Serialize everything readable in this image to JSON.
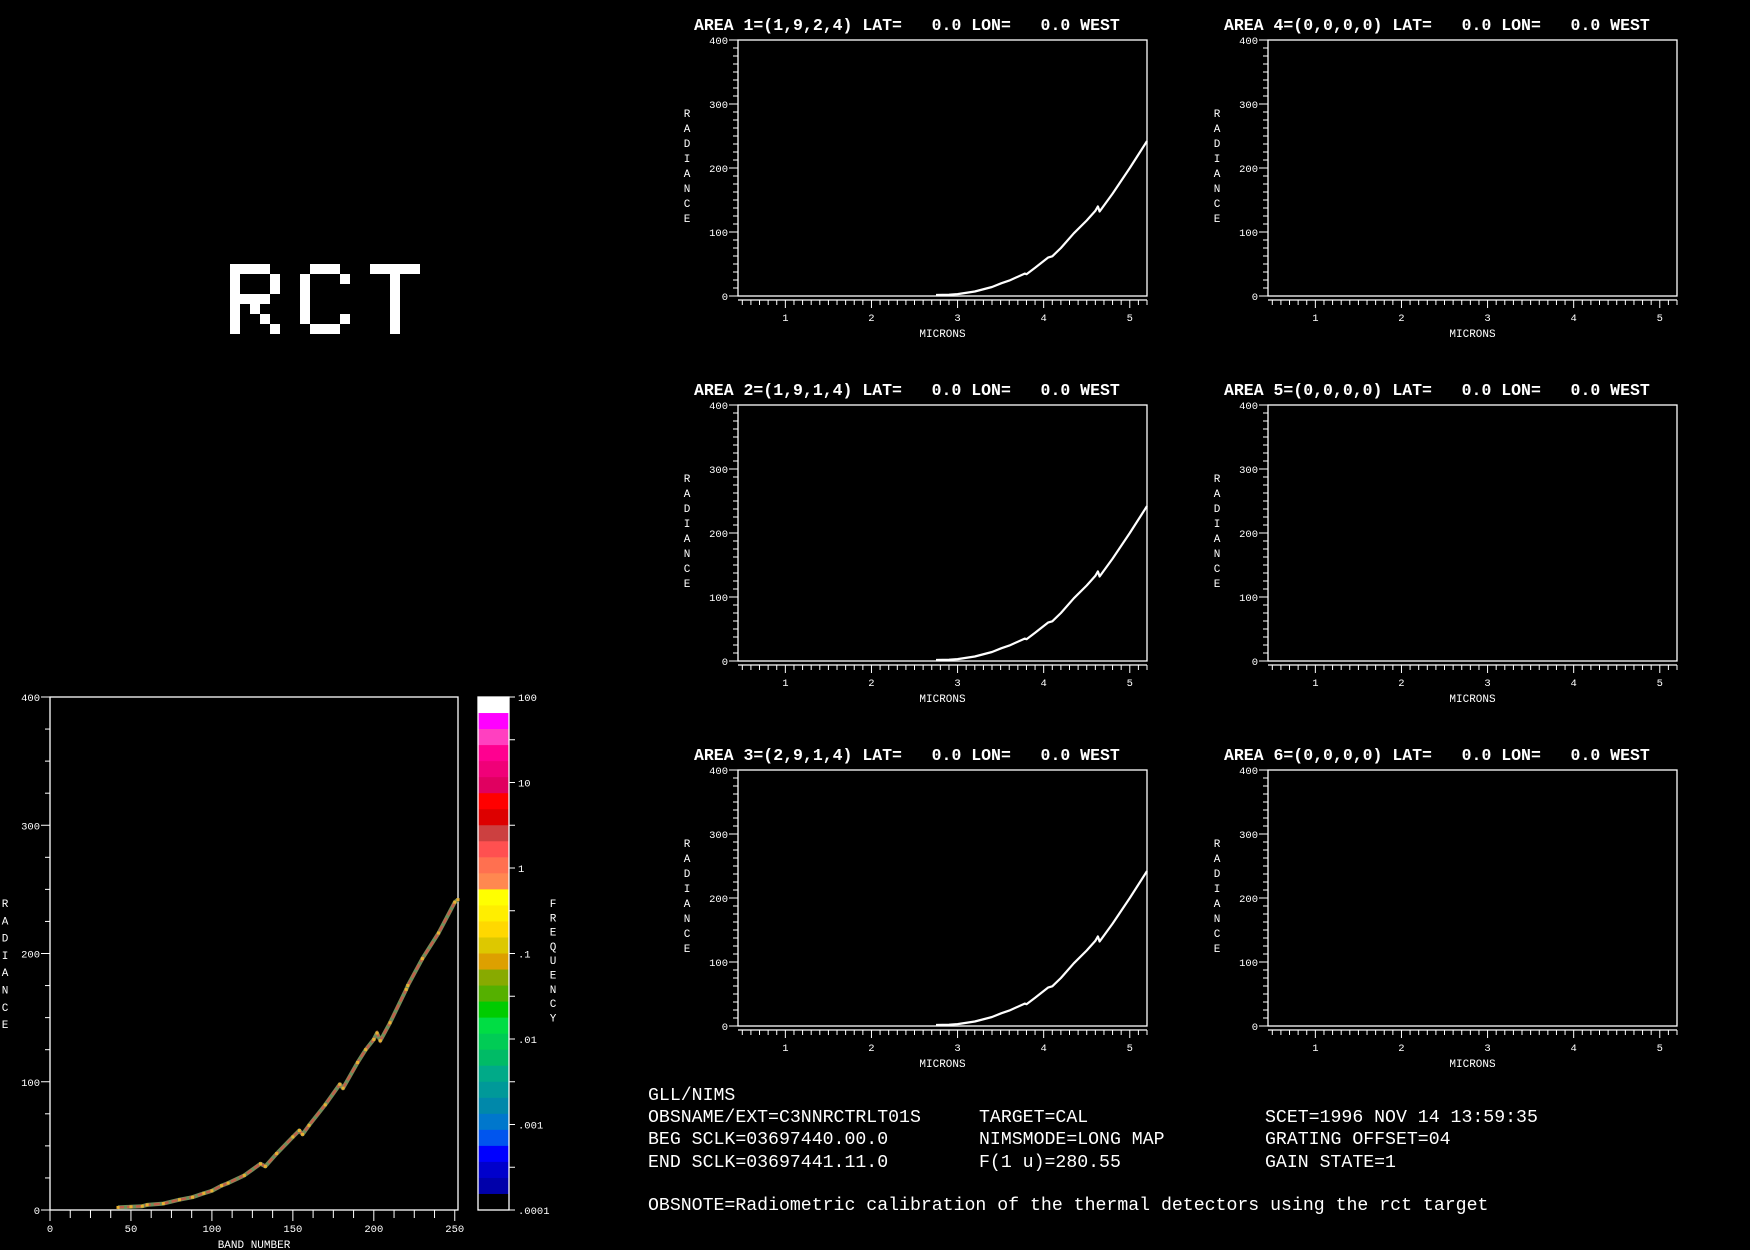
{
  "logo_text": "RCT",
  "footer": {
    "instrument": "GLL/NIMS",
    "obsname": "OBSNAME/EXT=C3NNRCTRLT01S",
    "beg_sclk": "BEG SCLK=03697440.00.0",
    "end_sclk": "END SCLK=03697441.11.0",
    "target": "TARGET=CAL",
    "nimsmode": "NIMSMODE=LONG MAP",
    "f1u": "F(1 u)=280.55",
    "scet": "SCET=1996 NOV 14 13:59:35",
    "grating_offset": "GRATING OFFSET=04",
    "gain_state": "GAIN STATE=1",
    "obsnote": "OBSNOTE=Radiometric calibration of the thermal detectors using the rct target"
  },
  "chart_data": [
    {
      "type": "line",
      "xlabel": "BAND NUMBER",
      "ylabel": "RADIANCE",
      "xlim": [
        0,
        252
      ],
      "ylim": [
        0,
        400
      ],
      "xticks": [
        "0",
        "50",
        "100",
        "150",
        "200",
        "250"
      ],
      "yticks": [
        "0",
        "100",
        "200",
        "300",
        "400"
      ],
      "grid": false,
      "series": [
        {
          "points": [
            [
              42,
              2
            ],
            [
              50,
              2.5
            ],
            [
              57,
              3
            ],
            [
              60,
              4
            ],
            [
              70,
              5
            ],
            [
              80,
              8
            ],
            [
              88,
              10
            ],
            [
              95,
              13
            ],
            [
              100,
              15
            ],
            [
              106,
              19
            ],
            [
              110,
              21
            ],
            [
              120,
              27
            ],
            [
              130,
              36
            ],
            [
              133,
              34
            ],
            [
              140,
              44
            ],
            [
              150,
              57
            ],
            [
              154,
              62
            ],
            [
              156,
              59
            ],
            [
              160,
              66
            ],
            [
              170,
              82
            ],
            [
              179,
              98
            ],
            [
              181,
              95
            ],
            [
              190,
              115
            ],
            [
              195,
              125
            ],
            [
              200,
              133
            ],
            [
              202,
              138
            ],
            [
              204,
              132
            ],
            [
              210,
              146
            ],
            [
              220,
              172
            ],
            [
              221,
              175
            ],
            [
              230,
              196
            ],
            [
              240,
              216
            ],
            [
              250,
              240
            ],
            [
              252,
              242
            ]
          ]
        }
      ],
      "colorbar": {
        "label": "FREQUENCY",
        "scale": "log",
        "ticks": [
          "100",
          "10",
          "1",
          ".1",
          ".01",
          ".001",
          ".0001"
        ],
        "colors": [
          "#ffffff",
          "#ff00ff",
          "#ff40c0",
          "#ff0090",
          "#f00078",
          "#e00060",
          "#ff0000",
          "#dd0000",
          "#cc4040",
          "#ff5050",
          "#ff7050",
          "#ff8850",
          "#ffff00",
          "#ffee00",
          "#ffd800",
          "#ddc800",
          "#dda000",
          "#88aa00",
          "#55b000",
          "#00cc00",
          "#00dd44",
          "#00cc55",
          "#00bb66",
          "#00aa88",
          "#009999",
          "#0088aa",
          "#0077cc",
          "#0055ee",
          "#0000ff",
          "#0000cc",
          "#0000aa",
          "#000000"
        ]
      }
    },
    {
      "type": "line",
      "title": "AREA 1=(1,9,2,4) LAT=   0.0 LON=   0.0 WEST",
      "xlabel": "MICRONS",
      "ylabel": "RADIANCE",
      "xlim": [
        0.45,
        5.2
      ],
      "ylim": [
        0,
        400
      ],
      "xticks": [
        "1",
        "2",
        "3",
        "4",
        "5"
      ],
      "yticks": [
        "0",
        "100",
        "200",
        "300",
        "400"
      ],
      "series": [
        {
          "points": [
            [
              2.75,
              1.5
            ],
            [
              2.9,
              2
            ],
            [
              3.0,
              3
            ],
            [
              3.2,
              7
            ],
            [
              3.4,
              14
            ],
            [
              3.51,
              20
            ],
            [
              3.6,
              24
            ],
            [
              3.78,
              35
            ],
            [
              3.8,
              34
            ],
            [
              3.9,
              44
            ],
            [
              4.05,
              60
            ],
            [
              4.1,
              62
            ],
            [
              4.2,
              75
            ],
            [
              4.35,
              98
            ],
            [
              4.5,
              118
            ],
            [
              4.6,
              133
            ],
            [
              4.63,
              140
            ],
            [
              4.65,
              132
            ],
            [
              4.8,
              160
            ],
            [
              5.0,
              200
            ],
            [
              5.2,
              242
            ]
          ]
        }
      ]
    },
    {
      "type": "line",
      "title": "AREA 2=(1,9,1,4) LAT=   0.0 LON=   0.0 WEST",
      "xlabel": "MICRONS",
      "ylabel": "RADIANCE",
      "xlim": [
        0.45,
        5.2
      ],
      "ylim": [
        0,
        400
      ],
      "xticks": [
        "1",
        "2",
        "3",
        "4",
        "5"
      ],
      "yticks": [
        "0",
        "100",
        "200",
        "300",
        "400"
      ],
      "series": [
        {
          "points": [
            [
              2.75,
              1.5
            ],
            [
              2.9,
              2
            ],
            [
              3.0,
              3
            ],
            [
              3.2,
              7
            ],
            [
              3.4,
              14
            ],
            [
              3.51,
              20
            ],
            [
              3.6,
              24
            ],
            [
              3.78,
              35
            ],
            [
              3.8,
              34
            ],
            [
              3.9,
              44
            ],
            [
              4.05,
              60
            ],
            [
              4.1,
              62
            ],
            [
              4.2,
              75
            ],
            [
              4.35,
              98
            ],
            [
              4.5,
              118
            ],
            [
              4.6,
              133
            ],
            [
              4.63,
              140
            ],
            [
              4.65,
              132
            ],
            [
              4.8,
              160
            ],
            [
              5.0,
              200
            ],
            [
              5.2,
              242
            ]
          ]
        }
      ]
    },
    {
      "type": "line",
      "title": "AREA 3=(2,9,1,4) LAT=   0.0 LON=   0.0 WEST",
      "xlabel": "MICRONS",
      "ylabel": "RADIANCE",
      "xlim": [
        0.45,
        5.2
      ],
      "ylim": [
        0,
        400
      ],
      "xticks": [
        "1",
        "2",
        "3",
        "4",
        "5"
      ],
      "yticks": [
        "0",
        "100",
        "200",
        "300",
        "400"
      ],
      "series": [
        {
          "points": [
            [
              2.75,
              1.5
            ],
            [
              2.9,
              2
            ],
            [
              3.0,
              3
            ],
            [
              3.2,
              7
            ],
            [
              3.4,
              14
            ],
            [
              3.51,
              20
            ],
            [
              3.6,
              24
            ],
            [
              3.78,
              35
            ],
            [
              3.8,
              34
            ],
            [
              3.9,
              44
            ],
            [
              4.05,
              60
            ],
            [
              4.1,
              62
            ],
            [
              4.2,
              75
            ],
            [
              4.35,
              98
            ],
            [
              4.5,
              118
            ],
            [
              4.6,
              133
            ],
            [
              4.63,
              140
            ],
            [
              4.65,
              132
            ],
            [
              4.8,
              160
            ],
            [
              5.0,
              200
            ],
            [
              5.2,
              242
            ]
          ]
        }
      ]
    },
    {
      "type": "line",
      "title": "AREA 4=(0,0,0,0) LAT=   0.0 LON=   0.0 WEST",
      "xlabel": "MICRONS",
      "ylabel": "RADIANCE",
      "xlim": [
        0.45,
        5.2
      ],
      "ylim": [
        0,
        400
      ],
      "xticks": [
        "1",
        "2",
        "3",
        "4",
        "5"
      ],
      "yticks": [
        "0",
        "100",
        "200",
        "300",
        "400"
      ],
      "series": []
    },
    {
      "type": "line",
      "title": "AREA 5=(0,0,0,0) LAT=   0.0 LON=   0.0 WEST",
      "xlabel": "MICRONS",
      "ylabel": "RADIANCE",
      "xlim": [
        0.45,
        5.2
      ],
      "ylim": [
        0,
        400
      ],
      "xticks": [
        "1",
        "2",
        "3",
        "4",
        "5"
      ],
      "yticks": [
        "0",
        "100",
        "200",
        "300",
        "400"
      ],
      "series": []
    },
    {
      "type": "line",
      "title": "AREA 6=(0,0,0,0) LAT=   0.0 LON=   0.0 WEST",
      "xlabel": "MICRONS",
      "ylabel": "RADIANCE",
      "xlim": [
        0.45,
        5.2
      ],
      "ylim": [
        0,
        400
      ],
      "xticks": [
        "1",
        "2",
        "3",
        "4",
        "5"
      ],
      "yticks": [
        "0",
        "100",
        "200",
        "300",
        "400"
      ],
      "series": []
    }
  ]
}
